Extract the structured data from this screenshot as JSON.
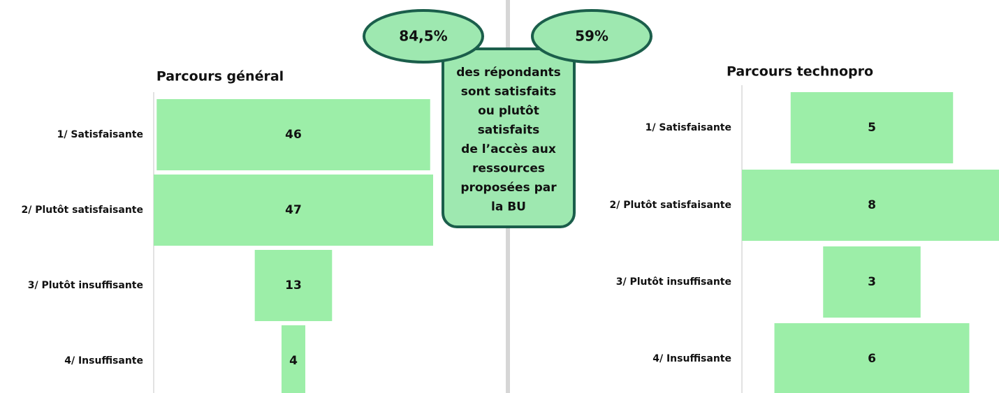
{
  "chart_data": [
    {
      "type": "funnel",
      "title": "Parcours général",
      "categories": [
        "1/ Satisfaisante",
        "2/ Plutôt satisfaisante",
        "3/ Plutôt insuffisante",
        "4/ Insuffisante"
      ],
      "values": [
        46,
        47,
        13,
        4
      ],
      "color": "#9ceea8"
    },
    {
      "type": "funnel",
      "title": "Parcours technopro",
      "categories": [
        "1/ Satisfaisante",
        "2/ Plutôt satisfaisante",
        "3/ Plutôt insuffisante",
        "4/ Insuffisante"
      ],
      "values": [
        5,
        8,
        3,
        6
      ],
      "color": "#9ceea8"
    }
  ],
  "callout": {
    "badges": [
      "84,5%",
      "59%"
    ],
    "lines": [
      "des répondants",
      "sont satisfaits",
      "ou plutôt",
      "satisfaits",
      "de l’accès aux",
      "ressources",
      "proposées par",
      "la BU"
    ]
  }
}
